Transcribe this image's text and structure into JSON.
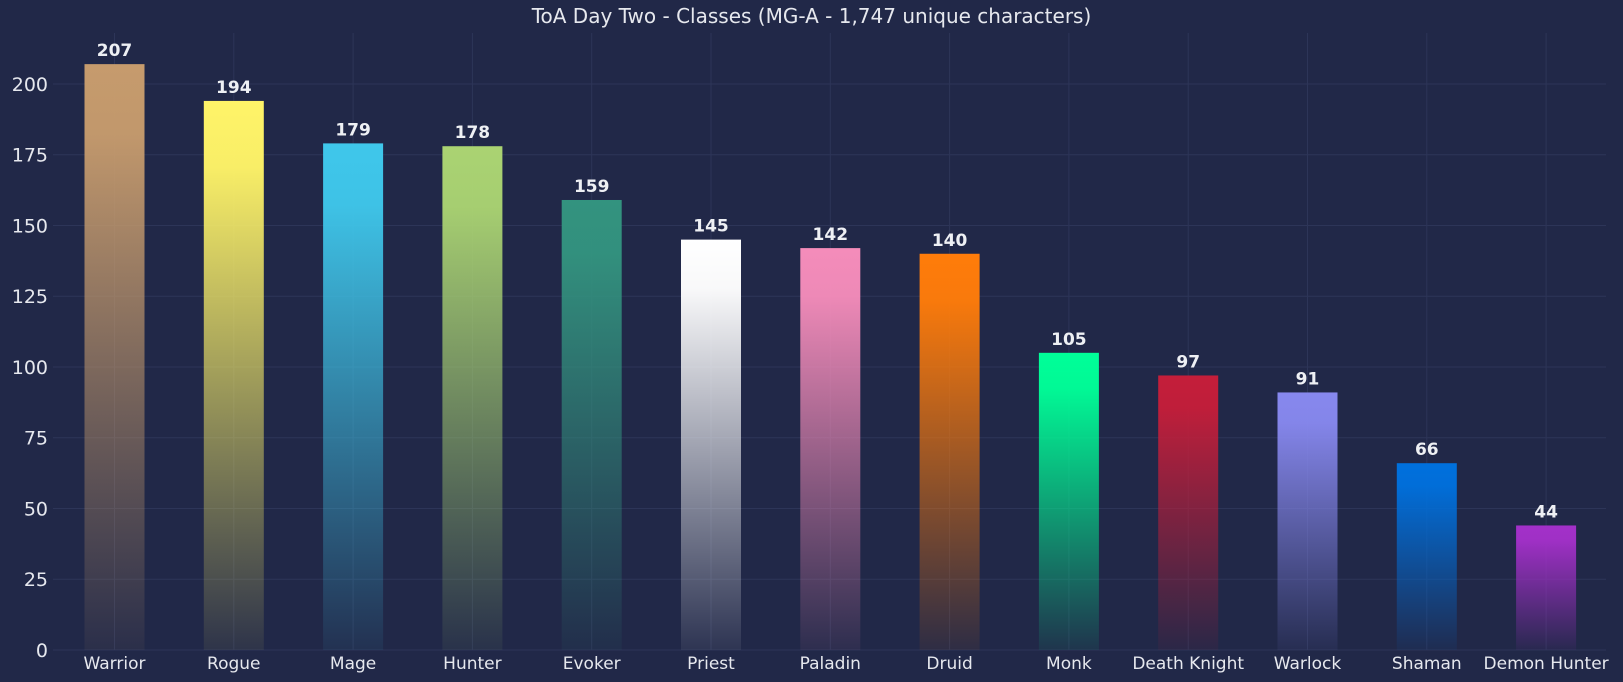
{
  "chart_data": {
    "type": "bar",
    "title": "ToA Day Two - Classes (MG-A - 1,747 unique characters)",
    "xlabel": "",
    "ylabel": "",
    "ylim": [
      0,
      218
    ],
    "yticks": [
      0,
      25,
      50,
      75,
      100,
      125,
      150,
      175,
      200
    ],
    "grid": true,
    "categories": [
      "Warrior",
      "Rogue",
      "Mage",
      "Hunter",
      "Evoker",
      "Priest",
      "Paladin",
      "Druid",
      "Monk",
      "Death Knight",
      "Warlock",
      "Shaman",
      "Demon Hunter"
    ],
    "values": [
      207,
      194,
      179,
      178,
      159,
      145,
      142,
      140,
      105,
      97,
      91,
      66,
      44
    ],
    "colors": [
      "#C69B6D",
      "#FFF468",
      "#3FC7EB",
      "#AAD372",
      "#33937F",
      "#FFFFFF",
      "#F48CBA",
      "#FF7C0A",
      "#00FF98",
      "#C41E3A",
      "#8788EE",
      "#0070DD",
      "#A330C9"
    ]
  },
  "colors": {
    "background": "#212848",
    "grid": "#2d3558",
    "text": "#e6e8ee"
  }
}
